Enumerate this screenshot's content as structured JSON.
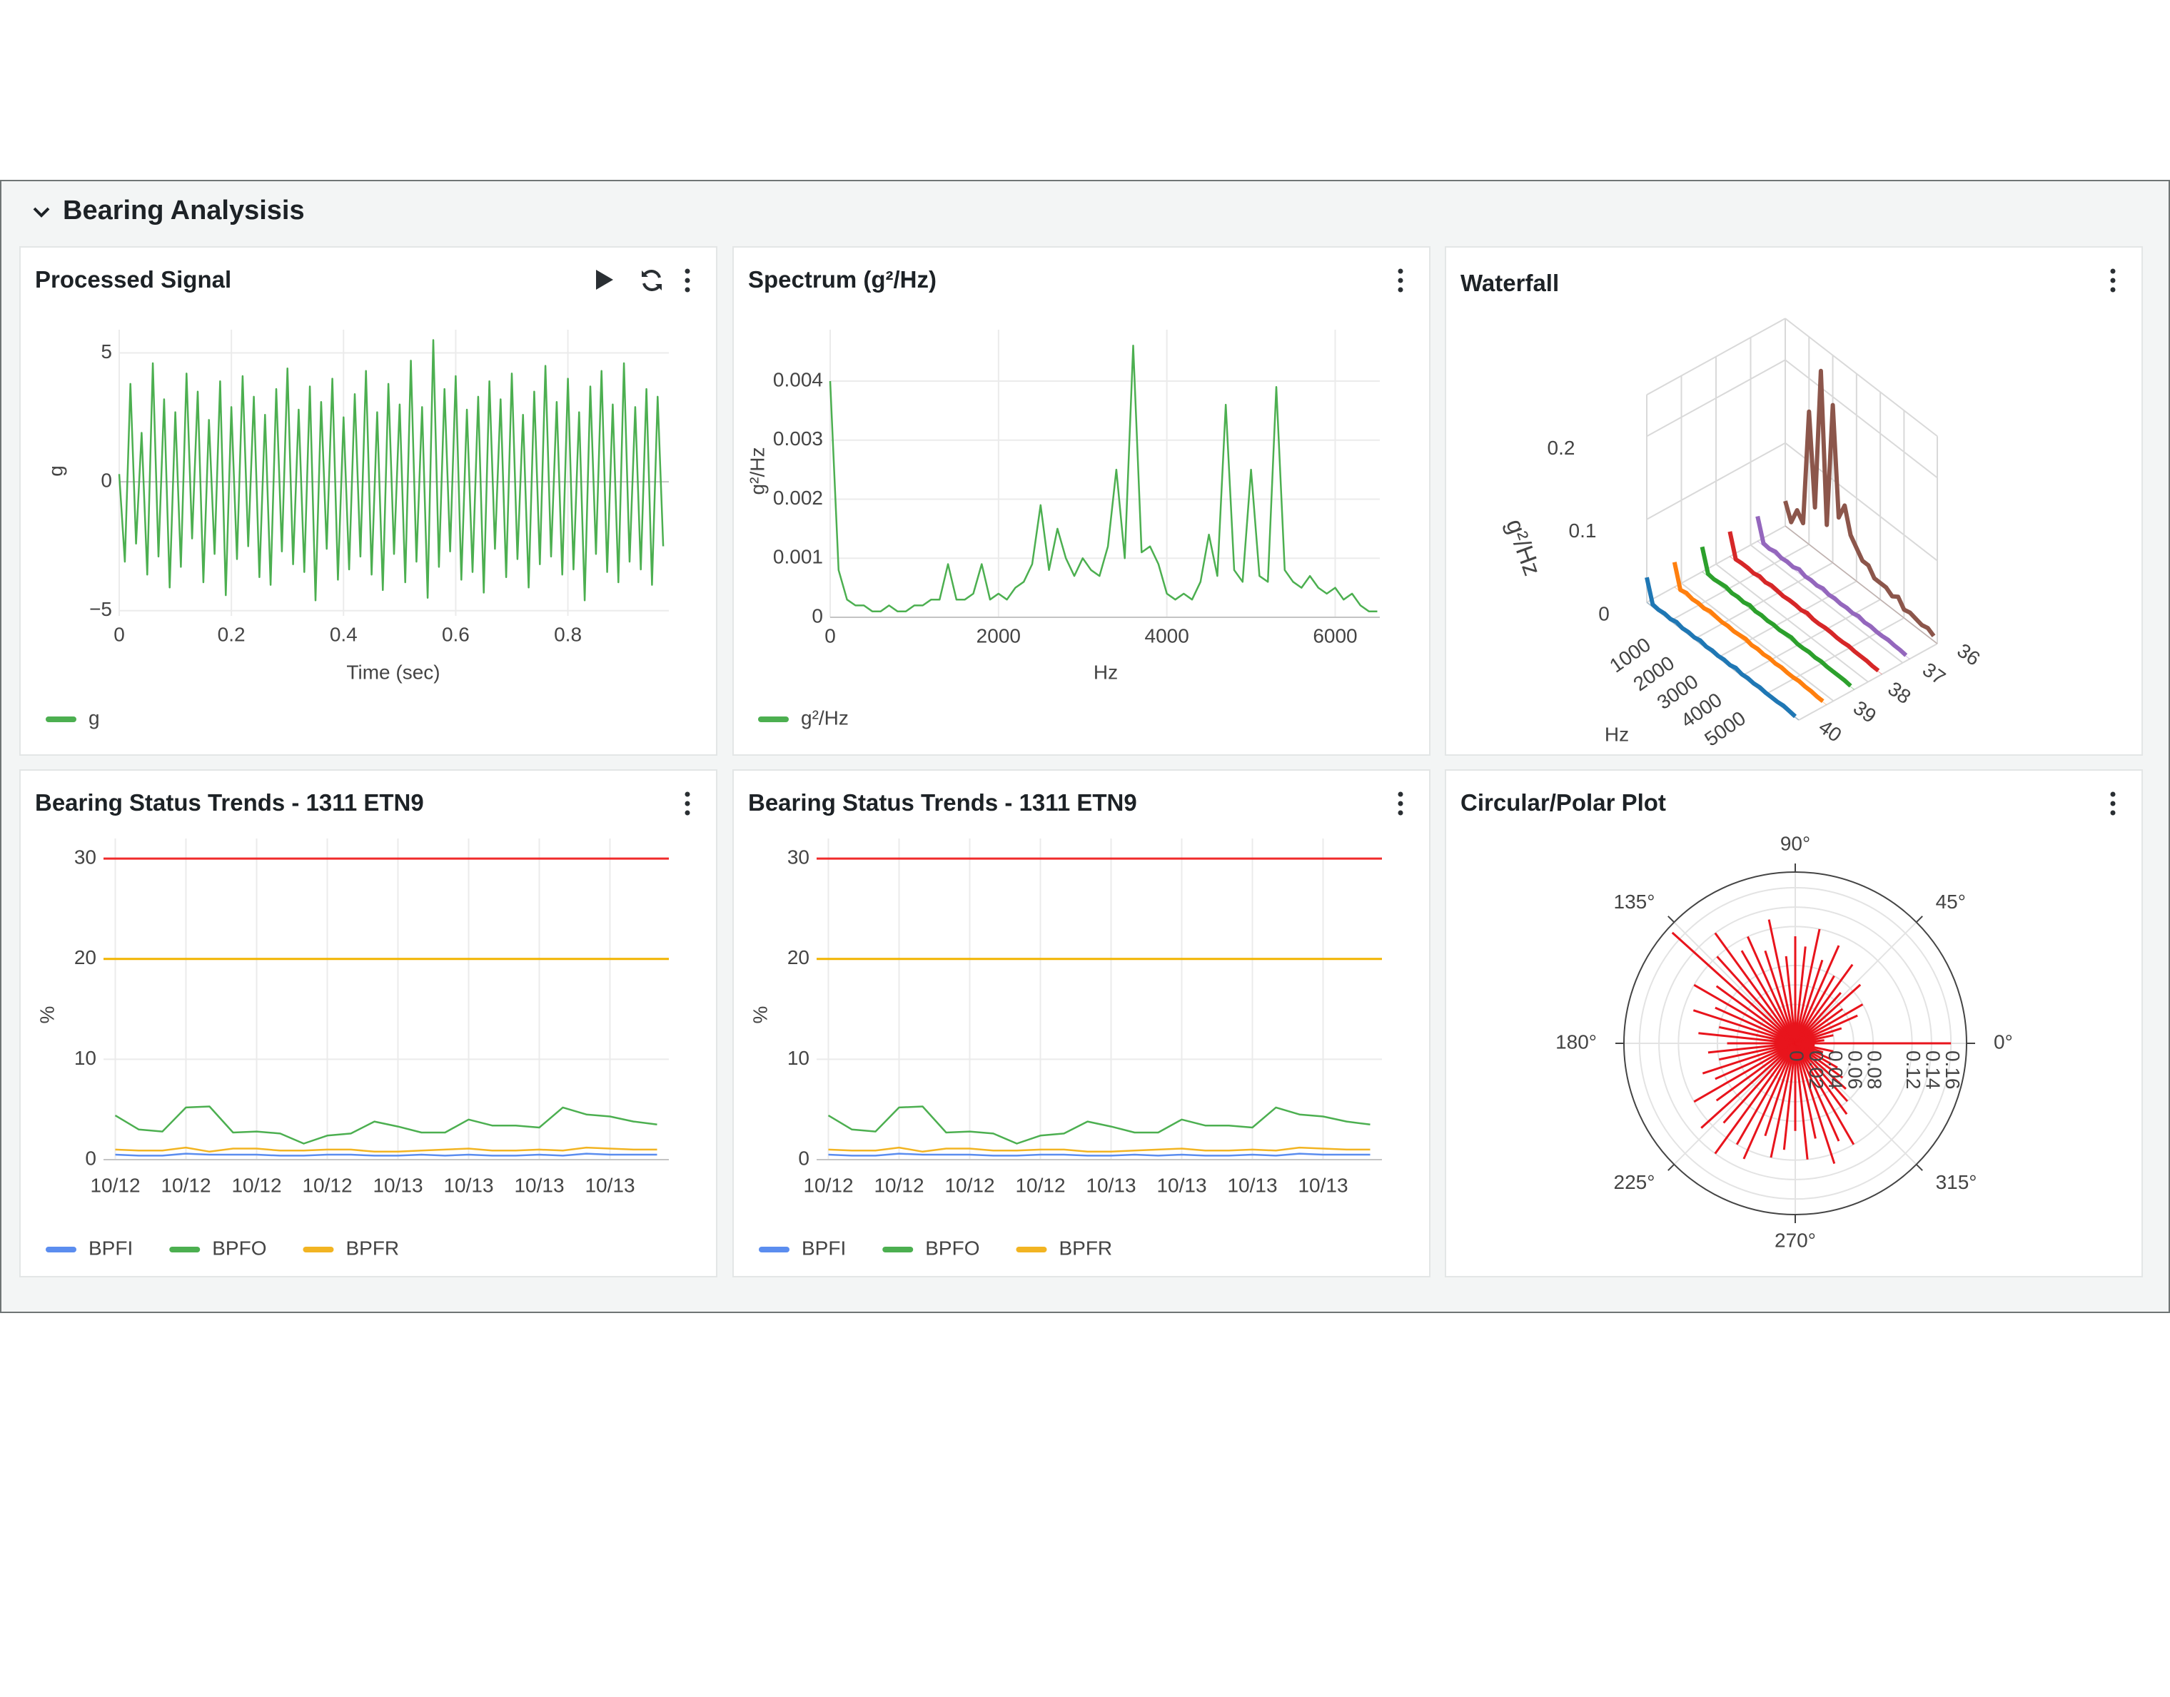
{
  "header": {
    "title": "Bearing Analysisis"
  },
  "chart_data": [
    {
      "type": "line",
      "title": "Processed Signal",
      "x_label": "Time (sec)",
      "y_label": "g",
      "xlim": [
        0,
        0.98
      ],
      "ylim": [
        -5.2,
        5.9
      ],
      "xticks": [
        0,
        0.2,
        0.4,
        0.6,
        0.8
      ],
      "yticks": [
        {
          "value": -5,
          "label": "−5"
        },
        0,
        5
      ],
      "grid": true,
      "x": [
        0,
        0.01,
        0.02,
        0.03,
        0.04,
        0.05,
        0.06,
        0.07,
        0.08,
        0.09,
        0.1,
        0.11,
        0.12,
        0.13,
        0.14,
        0.15,
        0.16,
        0.17,
        0.18,
        0.19,
        0.2,
        0.21,
        0.22,
        0.23,
        0.24,
        0.25,
        0.26,
        0.27,
        0.28,
        0.29,
        0.3,
        0.31,
        0.32,
        0.33,
        0.34,
        0.35,
        0.36,
        0.37,
        0.38,
        0.39,
        0.4,
        0.41,
        0.42,
        0.43,
        0.44,
        0.45,
        0.46,
        0.47,
        0.48,
        0.49,
        0.5,
        0.51,
        0.52,
        0.53,
        0.54,
        0.55,
        0.56,
        0.57,
        0.58,
        0.59,
        0.6,
        0.61,
        0.62,
        0.63,
        0.64,
        0.65,
        0.66,
        0.67,
        0.68,
        0.69,
        0.7,
        0.71,
        0.72,
        0.73,
        0.74,
        0.75,
        0.76,
        0.77,
        0.78,
        0.79,
        0.8,
        0.81,
        0.82,
        0.83,
        0.84,
        0.85,
        0.86,
        0.87,
        0.88,
        0.89,
        0.9,
        0.91,
        0.92,
        0.93,
        0.94,
        0.95,
        0.96,
        0.97
      ],
      "series": [
        {
          "name": "g",
          "color": "#4caf50",
          "values": [
            0.3,
            -3.1,
            3.8,
            -2.4,
            1.9,
            -3.6,
            4.6,
            -2.9,
            3.2,
            -4.1,
            2.7,
            -3.3,
            4.2,
            -2.2,
            3.5,
            -3.9,
            2.4,
            -2.8,
            3.9,
            -4.4,
            2.9,
            -3.0,
            4.1,
            -2.5,
            3.3,
            -3.7,
            2.6,
            -4.0,
            3.6,
            -2.7,
            4.4,
            -3.2,
            2.8,
            -3.5,
            3.7,
            -4.6,
            3.1,
            -2.6,
            4.0,
            -3.8,
            2.5,
            -3.4,
            3.4,
            -2.9,
            4.3,
            -3.6,
            2.7,
            -4.2,
            3.8,
            -2.8,
            3.0,
            -3.9,
            4.7,
            -3.1,
            2.9,
            -4.5,
            5.5,
            -3.3,
            3.6,
            -2.7,
            4.1,
            -3.8,
            2.8,
            -3.5,
            3.3,
            -4.3,
            3.9,
            -2.6,
            3.2,
            -3.7,
            4.2,
            -3.0,
            2.6,
            -4.1,
            3.5,
            -3.2,
            4.5,
            -2.9,
            3.1,
            -3.6,
            4.0,
            -3.4,
            2.7,
            -4.6,
            3.7,
            -2.8,
            4.3,
            -3.5,
            3.0,
            -3.9,
            4.6,
            -3.1,
            2.9,
            -3.4,
            3.6,
            -4.0,
            3.3,
            -2.5
          ]
        }
      ]
    },
    {
      "type": "line",
      "title": "Spectrum (g²/Hz)",
      "x_label": "Hz",
      "y_label": "g²/Hz",
      "xlim": [
        0,
        6530
      ],
      "ylim": [
        0,
        0.00487
      ],
      "xticks": [
        0,
        2000,
        4000,
        6000
      ],
      "yticks": [
        0,
        0.001,
        0.002,
        0.003,
        0.004
      ],
      "grid": true,
      "x": [
        0,
        100,
        200,
        300,
        400,
        500,
        600,
        700,
        800,
        900,
        1000,
        1100,
        1200,
        1300,
        1400,
        1500,
        1600,
        1700,
        1800,
        1900,
        2000,
        2100,
        2200,
        2300,
        2400,
        2500,
        2600,
        2700,
        2800,
        2900,
        3000,
        3100,
        3200,
        3300,
        3400,
        3500,
        3600,
        3700,
        3800,
        3900,
        4000,
        4100,
        4200,
        4300,
        4400,
        4500,
        4600,
        4700,
        4800,
        4900,
        5000,
        5100,
        5200,
        5300,
        5400,
        5500,
        5600,
        5700,
        5800,
        5900,
        6000,
        6100,
        6200,
        6300,
        6400,
        6500
      ],
      "series": [
        {
          "name": "g²/Hz",
          "color": "#4caf50",
          "values": [
            0.004,
            0.0008,
            0.0003,
            0.0002,
            0.0002,
            0.0001,
            0.0001,
            0.0002,
            0.0001,
            0.0001,
            0.0002,
            0.0002,
            0.0003,
            0.0003,
            0.0009,
            0.0003,
            0.0003,
            0.0004,
            0.0009,
            0.0003,
            0.0004,
            0.0003,
            0.0005,
            0.0006,
            0.0009,
            0.0019,
            0.0008,
            0.0015,
            0.001,
            0.0007,
            0.001,
            0.0008,
            0.0007,
            0.0012,
            0.0025,
            0.001,
            0.0046,
            0.0011,
            0.0012,
            0.0009,
            0.0004,
            0.0003,
            0.0004,
            0.0003,
            0.0006,
            0.0014,
            0.0007,
            0.0036,
            0.0008,
            0.0006,
            0.0025,
            0.0007,
            0.0006,
            0.0039,
            0.0008,
            0.0006,
            0.0005,
            0.0007,
            0.0005,
            0.0004,
            0.0005,
            0.0003,
            0.0004,
            0.0002,
            0.0001,
            0.0001
          ]
        }
      ]
    },
    {
      "type": "line3d",
      "title": "Waterfall",
      "x_label": "Hz",
      "z_label": "g²/Hz",
      "xlim": [
        0,
        6400
      ],
      "ylim": [
        36,
        40
      ],
      "zlim": [
        0,
        0.25
      ],
      "xticks": [
        1000,
        2000,
        3000,
        4000,
        5000
      ],
      "yticks": [
        36,
        37,
        38,
        39,
        40
      ],
      "zticks": [
        0,
        0.1,
        0.2
      ],
      "x": [
        0,
        250,
        500,
        750,
        1000,
        1250,
        1500,
        1750,
        2000,
        2250,
        2500,
        2750,
        3000,
        3250,
        3500,
        3750,
        4000,
        4250,
        4500,
        4750,
        5000,
        5250,
        5500,
        5750,
        6000,
        6250
      ],
      "series": [
        {
          "color": "#8c564b",
          "y": 36,
          "values": [
            0.03,
            0.01,
            0.03,
            0.02,
            0.16,
            0.05,
            0.22,
            0.04,
            0.19,
            0.06,
            0.08,
            0.05,
            0.04,
            0.03,
            0.03,
            0.02,
            0.02,
            0.02,
            0.015,
            0.02,
            0.01,
            0.012,
            0.01,
            0.008,
            0.01,
            0.006
          ]
        },
        {
          "color": "#9467bd",
          "y": 36.8,
          "values": [
            0.03,
            0.003,
            0.002,
            0.004,
            0.002,
            0.003,
            0.002,
            0.005,
            0.002,
            0.003,
            0.002,
            0.004,
            0.002,
            0.003,
            0.002,
            0.003,
            0.002,
            0.004,
            0.002,
            0.003,
            0.002,
            0.002,
            0.003,
            0.002,
            0.002,
            0.001
          ]
        },
        {
          "color": "#d62728",
          "y": 37.6,
          "values": [
            0.03,
            0.002,
            0.003,
            0.003,
            0.002,
            0.004,
            0.002,
            0.004,
            0.003,
            0.002,
            0.003,
            0.003,
            0.002,
            0.004,
            0.002,
            0.002,
            0.003,
            0.003,
            0.002,
            0.002,
            0.003,
            0.002,
            0.002,
            0.002,
            0.001,
            0.001
          ]
        },
        {
          "color": "#2ca02c",
          "y": 38.4,
          "values": [
            0.03,
            0.003,
            0.002,
            0.003,
            0.004,
            0.002,
            0.003,
            0.002,
            0.004,
            0.002,
            0.003,
            0.002,
            0.003,
            0.002,
            0.003,
            0.004,
            0.002,
            0.002,
            0.003,
            0.002,
            0.003,
            0.002,
            0.002,
            0.002,
            0.002,
            0.001
          ]
        },
        {
          "color": "#ff7f0e",
          "y": 39.2,
          "values": [
            0.03,
            0.002,
            0.004,
            0.002,
            0.003,
            0.002,
            0.004,
            0.003,
            0.002,
            0.003,
            0.002,
            0.003,
            0.004,
            0.002,
            0.003,
            0.002,
            0.003,
            0.002,
            0.003,
            0.002,
            0.002,
            0.003,
            0.002,
            0.002,
            0.001,
            0.001
          ]
        },
        {
          "color": "#1f77b4",
          "y": 40,
          "values": [
            0.03,
            0.003,
            0.002,
            0.003,
            0.002,
            0.004,
            0.002,
            0.003,
            0.002,
            0.004,
            0.002,
            0.003,
            0.002,
            0.003,
            0.002,
            0.004,
            0.002,
            0.003,
            0.002,
            0.003,
            0.002,
            0.002,
            0.002,
            0.003,
            0.002,
            0.001
          ]
        }
      ]
    },
    {
      "type": "line",
      "title": "Bearing Status Trends - 1311 ETN9",
      "y_label": "%",
      "ylim": [
        0,
        32
      ],
      "yticks": [
        0,
        10,
        20,
        30
      ],
      "grid": true,
      "categories": [
        "10/12",
        null,
        null,
        "10/12",
        null,
        null,
        "10/12",
        null,
        null,
        "10/12",
        null,
        null,
        "10/13",
        null,
        null,
        "10/13",
        null,
        null,
        "10/13",
        null,
        null,
        "10/13",
        null,
        null
      ],
      "reference_lines": [
        {
          "value": 30,
          "color": "#f02b2b"
        },
        {
          "value": 20,
          "color": "#f2b400"
        }
      ],
      "series": [
        {
          "name": "BPFI",
          "color": "#5b8def",
          "values": [
            0.5,
            0.4,
            0.4,
            0.6,
            0.5,
            0.5,
            0.5,
            0.4,
            0.4,
            0.5,
            0.5,
            0.4,
            0.4,
            0.5,
            0.4,
            0.5,
            0.4,
            0.4,
            0.5,
            0.4,
            0.6,
            0.5,
            0.5,
            0.5
          ]
        },
        {
          "name": "BPFO",
          "color": "#4caf50",
          "values": [
            4.4,
            3.0,
            2.8,
            5.2,
            5.3,
            2.7,
            2.8,
            2.6,
            1.6,
            2.4,
            2.6,
            3.8,
            3.3,
            2.7,
            2.7,
            4.0,
            3.4,
            3.4,
            3.2,
            5.2,
            4.5,
            4.3,
            3.8,
            3.5
          ]
        },
        {
          "name": "BPFR",
          "color": "#f2b422",
          "values": [
            1.0,
            0.9,
            0.9,
            1.2,
            0.8,
            1.1,
            1.1,
            0.9,
            0.9,
            1.0,
            1.0,
            0.8,
            0.8,
            0.9,
            1.0,
            1.1,
            0.9,
            0.9,
            1.0,
            0.9,
            1.2,
            1.1,
            1.0,
            1.0
          ]
        }
      ]
    },
    {
      "type": "line",
      "title": "Bearing Status Trends - 1311 ETN9",
      "y_label": "%",
      "ylim": [
        0,
        32
      ],
      "yticks": [
        0,
        10,
        20,
        30
      ],
      "grid": true,
      "categories": [
        "10/12",
        null,
        null,
        "10/12",
        null,
        null,
        "10/12",
        null,
        null,
        "10/12",
        null,
        null,
        "10/13",
        null,
        null,
        "10/13",
        null,
        null,
        "10/13",
        null,
        null,
        "10/13",
        null,
        null
      ],
      "reference_lines": [
        {
          "value": 30,
          "color": "#f02b2b"
        },
        {
          "value": 20,
          "color": "#f2b400"
        }
      ],
      "series": [
        {
          "name": "BPFI",
          "color": "#5b8def",
          "values": [
            0.5,
            0.4,
            0.4,
            0.6,
            0.5,
            0.5,
            0.5,
            0.4,
            0.4,
            0.5,
            0.5,
            0.4,
            0.4,
            0.5,
            0.4,
            0.5,
            0.4,
            0.4,
            0.5,
            0.4,
            0.6,
            0.5,
            0.5,
            0.5
          ]
        },
        {
          "name": "BPFO",
          "color": "#4caf50",
          "values": [
            4.4,
            3.0,
            2.8,
            5.2,
            5.3,
            2.7,
            2.8,
            2.6,
            1.6,
            2.4,
            2.6,
            3.8,
            3.3,
            2.7,
            2.7,
            4.0,
            3.4,
            3.4,
            3.2,
            5.2,
            4.5,
            4.3,
            3.8,
            3.5
          ]
        },
        {
          "name": "BPFR",
          "color": "#f2b422",
          "values": [
            1.0,
            0.9,
            0.9,
            1.2,
            0.8,
            1.1,
            1.1,
            0.9,
            0.9,
            1.0,
            1.0,
            0.8,
            0.8,
            0.9,
            1.0,
            1.1,
            0.9,
            0.9,
            1.0,
            0.9,
            1.2,
            1.1,
            1.0,
            1.0
          ]
        }
      ]
    },
    {
      "type": "polar",
      "title": "Circular/Polar Plot",
      "color": "#e8141c",
      "rlim": [
        0,
        0.176
      ],
      "rticks": [
        0,
        0.02,
        0.04,
        0.06,
        0.08,
        0.12,
        0.14,
        0.16
      ],
      "thetaticks": [
        {
          "value": 0,
          "label": "0°"
        },
        {
          "value": 45,
          "label": "45°"
        },
        {
          "value": 90,
          "label": "90°"
        },
        {
          "value": 135,
          "label": "135°"
        },
        {
          "value": 180,
          "label": "180°"
        },
        {
          "value": 225,
          "label": "225°"
        },
        {
          "value": 270,
          "label": "270°"
        },
        {
          "value": 315,
          "label": "315°"
        }
      ],
      "theta": [
        0,
        6,
        12,
        18,
        24,
        30,
        36,
        42,
        48,
        54,
        60,
        66,
        72,
        78,
        84,
        90,
        96,
        102,
        108,
        114,
        120,
        126,
        132,
        138,
        144,
        150,
        156,
        162,
        168,
        174,
        180,
        186,
        192,
        198,
        204,
        210,
        216,
        222,
        228,
        234,
        240,
        246,
        252,
        258,
        264,
        270,
        276,
        282,
        288,
        294,
        300,
        306,
        312,
        318,
        324,
        330,
        336,
        342,
        348,
        354
      ],
      "r": [
        0.16,
        0.03,
        0.04,
        0.05,
        0.07,
        0.08,
        0.06,
        0.09,
        0.07,
        0.1,
        0.08,
        0.11,
        0.09,
        0.12,
        0.1,
        0.11,
        0.09,
        0.13,
        0.1,
        0.12,
        0.11,
        0.14,
        0.12,
        0.17,
        0.1,
        0.12,
        0.09,
        0.11,
        0.08,
        0.1,
        0.07,
        0.09,
        0.08,
        0.1,
        0.09,
        0.12,
        0.1,
        0.13,
        0.11,
        0.14,
        0.12,
        0.13,
        0.1,
        0.12,
        0.11,
        0.09,
        0.12,
        0.1,
        0.13,
        0.11,
        0.12,
        0.09,
        0.08,
        0.07,
        0.06,
        0.05,
        0.04,
        0.03,
        0.04,
        0.02
      ]
    }
  ]
}
